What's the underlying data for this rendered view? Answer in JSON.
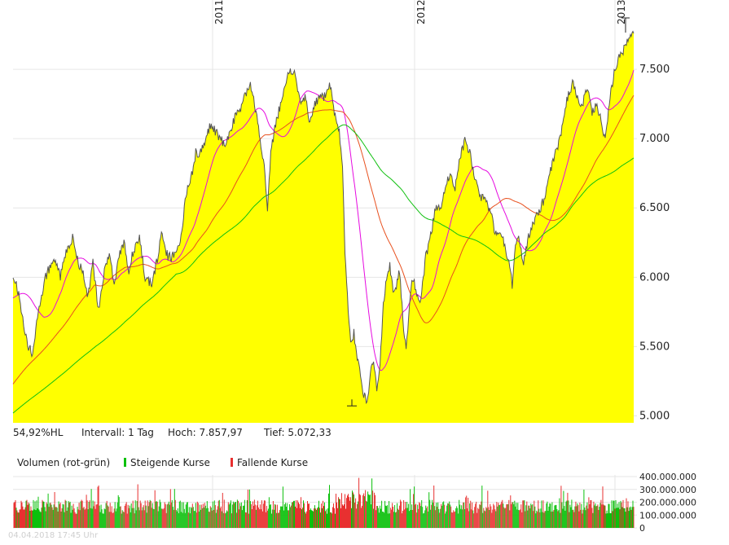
{
  "chart_data": {
    "type": "area",
    "years": [
      "2011",
      "2012",
      "2013"
    ],
    "price_axis": {
      "ticks": [
        5000,
        5500,
        6000,
        6500,
        7000,
        7500
      ],
      "labels": [
        "5.000",
        "5.500",
        "6.000",
        "6.500",
        "7.000",
        "7.500"
      ],
      "ylim": [
        4950,
        8000
      ]
    },
    "price_anchors": [
      [
        0,
        6020
      ],
      [
        6,
        5900
      ],
      [
        12,
        5700
      ],
      [
        18,
        5500
      ],
      [
        24,
        5450
      ],
      [
        30,
        5700
      ],
      [
        40,
        6000
      ],
      [
        50,
        6150
      ],
      [
        58,
        6000
      ],
      [
        66,
        6200
      ],
      [
        74,
        6300
      ],
      [
        80,
        6100
      ],
      [
        86,
        6050
      ],
      [
        92,
        5850
      ],
      [
        98,
        6100
      ],
      [
        105,
        5750
      ],
      [
        112,
        6050
      ],
      [
        118,
        6150
      ],
      [
        124,
        5950
      ],
      [
        130,
        6150
      ],
      [
        136,
        6250
      ],
      [
        142,
        6050
      ],
      [
        148,
        6200
      ],
      [
        155,
        6300
      ],
      [
        162,
        6000
      ],
      [
        170,
        5950
      ],
      [
        176,
        6100
      ],
      [
        182,
        6300
      ],
      [
        190,
        6150
      ],
      [
        198,
        6150
      ],
      [
        206,
        6300
      ],
      [
        212,
        6600
      ],
      [
        218,
        6700
      ],
      [
        224,
        6900
      ],
      [
        230,
        6900
      ],
      [
        236,
        7000
      ],
      [
        242,
        7100
      ],
      [
        248,
        7050
      ],
      [
        254,
        7000
      ],
      [
        260,
        6950
      ],
      [
        266,
        7050
      ],
      [
        272,
        7150
      ],
      [
        278,
        7200
      ],
      [
        284,
        7300
      ],
      [
        290,
        7400
      ],
      [
        296,
        7250
      ],
      [
        302,
        7050
      ],
      [
        308,
        6800
      ],
      [
        312,
        6500
      ],
      [
        316,
        6900
      ],
      [
        322,
        7100
      ],
      [
        328,
        7250
      ],
      [
        334,
        7400
      ],
      [
        340,
        7500
      ],
      [
        346,
        7450
      ],
      [
        352,
        7250
      ],
      [
        358,
        7300
      ],
      [
        364,
        7100
      ],
      [
        370,
        7250
      ],
      [
        376,
        7300
      ],
      [
        382,
        7300
      ],
      [
        388,
        7400
      ],
      [
        394,
        7200
      ],
      [
        400,
        7050
      ],
      [
        404,
        6800
      ],
      [
        407,
        6200
      ],
      [
        410,
        5850
      ],
      [
        414,
        5500
      ],
      [
        418,
        5600
      ],
      [
        422,
        5400
      ],
      [
        426,
        5300
      ],
      [
        430,
        5150
      ],
      [
        434,
        5100
      ],
      [
        438,
        5300
      ],
      [
        442,
        5400
      ],
      [
        446,
        5200
      ],
      [
        450,
        5400
      ],
      [
        454,
        5800
      ],
      [
        458,
        6000
      ],
      [
        462,
        6100
      ],
      [
        466,
        5900
      ],
      [
        470,
        5950
      ],
      [
        474,
        6050
      ],
      [
        478,
        5700
      ],
      [
        482,
        5450
      ],
      [
        486,
        5800
      ],
      [
        490,
        6000
      ],
      [
        494,
        5900
      ],
      [
        498,
        5800
      ],
      [
        502,
        5950
      ],
      [
        506,
        6150
      ],
      [
        512,
        6300
      ],
      [
        518,
        6500
      ],
      [
        524,
        6500
      ],
      [
        530,
        6650
      ],
      [
        536,
        6750
      ],
      [
        542,
        6650
      ],
      [
        548,
        6850
      ],
      [
        554,
        7000
      ],
      [
        560,
        6900
      ],
      [
        566,
        6700
      ],
      [
        572,
        6600
      ],
      [
        578,
        6550
      ],
      [
        584,
        6500
      ],
      [
        590,
        6350
      ],
      [
        596,
        6300
      ],
      [
        602,
        6250
      ],
      [
        608,
        6100
      ],
      [
        612,
        5950
      ],
      [
        616,
        6200
      ],
      [
        620,
        6300
      ],
      [
        626,
        6100
      ],
      [
        632,
        6300
      ],
      [
        638,
        6400
      ],
      [
        644,
        6450
      ],
      [
        650,
        6550
      ],
      [
        656,
        6700
      ],
      [
        662,
        6850
      ],
      [
        668,
        6950
      ],
      [
        674,
        7100
      ],
      [
        680,
        7300
      ],
      [
        686,
        7400
      ],
      [
        692,
        7300
      ],
      [
        698,
        7250
      ],
      [
        704,
        7350
      ],
      [
        710,
        7200
      ],
      [
        716,
        7250
      ],
      [
        722,
        7100
      ],
      [
        726,
        7000
      ],
      [
        732,
        7300
      ],
      [
        738,
        7500
      ],
      [
        744,
        7600
      ],
      [
        750,
        7650
      ],
      [
        756,
        7750
      ],
      [
        762,
        7750
      ],
      [
        766,
        7700
      ],
      [
        770,
        7800
      ],
      [
        774,
        7750
      ],
      [
        777,
        7580
      ]
    ],
    "series": [
      {
        "type": "area",
        "color": "#ffff00",
        "line_color": "#555555"
      },
      {
        "type": "moving-average",
        "color": "#e60ae0",
        "period": 38
      },
      {
        "type": "moving-average",
        "color": "#e8501e",
        "period": 100
      },
      {
        "type": "moving-average",
        "color": "#10c010",
        "period": 200
      }
    ],
    "high": {
      "label": "Hoch:",
      "value": "7.857,97"
    },
    "low": {
      "label": "Tief:",
      "value": "5.072,33"
    },
    "range_text": "54,92%HL",
    "interval": "Intervall: 1 Tag",
    "volume": {
      "title": "Volumen (rot-grün)",
      "rising_label": "Steigende Kurse",
      "falling_label": "Fallende Kurse",
      "rising_color": "#0cc00c",
      "falling_color": "#e83030",
      "ticks": [
        0,
        100000000,
        200000000,
        300000000,
        400000000
      ],
      "labels": [
        "0",
        "100.000.000",
        "200.000.000",
        "300.000.000",
        "400.000.000"
      ]
    }
  },
  "timestamp": "04.04.2018 17:45 Uhr"
}
